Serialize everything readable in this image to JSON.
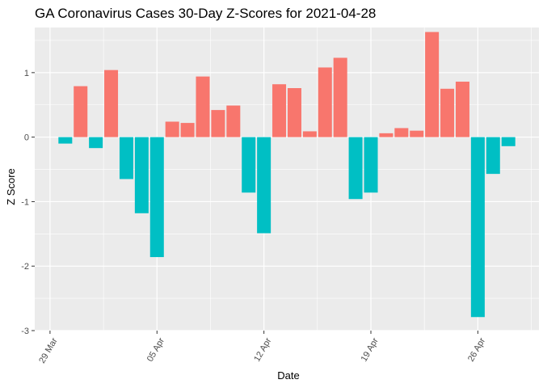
{
  "chart_data": {
    "type": "bar",
    "title": "GA Coronavirus Cases 30-Day Z-Scores for 2021-04-28",
    "xlabel": "Date",
    "ylabel": "Z Score",
    "x_ticks": [
      {
        "date": "2021-03-29",
        "label": "29 Mar"
      },
      {
        "date": "2021-04-05",
        "label": "05 Apr"
      },
      {
        "date": "2021-04-12",
        "label": "12 Apr"
      },
      {
        "date": "2021-04-19",
        "label": "19 Apr"
      },
      {
        "date": "2021-04-26",
        "label": "26 Apr"
      }
    ],
    "y_ticks": [
      {
        "value": 1,
        "label": "1"
      },
      {
        "value": 0,
        "label": "0"
      },
      {
        "value": -1,
        "label": "-1"
      },
      {
        "value": -2,
        "label": "-2"
      },
      {
        "value": -3,
        "label": "-3"
      }
    ],
    "xlim": [
      "2021-03-28",
      "2021-04-30"
    ],
    "ylim": [
      -3,
      1.7
    ],
    "grid": true,
    "legend": "none",
    "colors": {
      "positive": "#F8766D",
      "negative": "#00BFC4",
      "panel": "#EBEBEB",
      "grid": "#FFFFFF"
    },
    "dates": [
      "2021-03-30",
      "2021-03-31",
      "2021-04-01",
      "2021-04-02",
      "2021-04-03",
      "2021-04-04",
      "2021-04-05",
      "2021-04-06",
      "2021-04-07",
      "2021-04-08",
      "2021-04-09",
      "2021-04-10",
      "2021-04-11",
      "2021-04-12",
      "2021-04-13",
      "2021-04-14",
      "2021-04-15",
      "2021-04-16",
      "2021-04-17",
      "2021-04-18",
      "2021-04-19",
      "2021-04-20",
      "2021-04-21",
      "2021-04-22",
      "2021-04-23",
      "2021-04-24",
      "2021-04-25",
      "2021-04-26",
      "2021-04-27",
      "2021-04-28"
    ],
    "values": [
      -0.1,
      0.79,
      -0.17,
      1.04,
      -0.65,
      -1.18,
      -1.86,
      0.24,
      0.22,
      0.94,
      0.42,
      0.49,
      -0.86,
      -1.49,
      0.82,
      0.76,
      0.09,
      1.08,
      1.23,
      -0.96,
      -0.86,
      0.06,
      0.14,
      0.1,
      1.63,
      0.75,
      0.86,
      -2.79,
      -0.57,
      -0.14
    ]
  }
}
